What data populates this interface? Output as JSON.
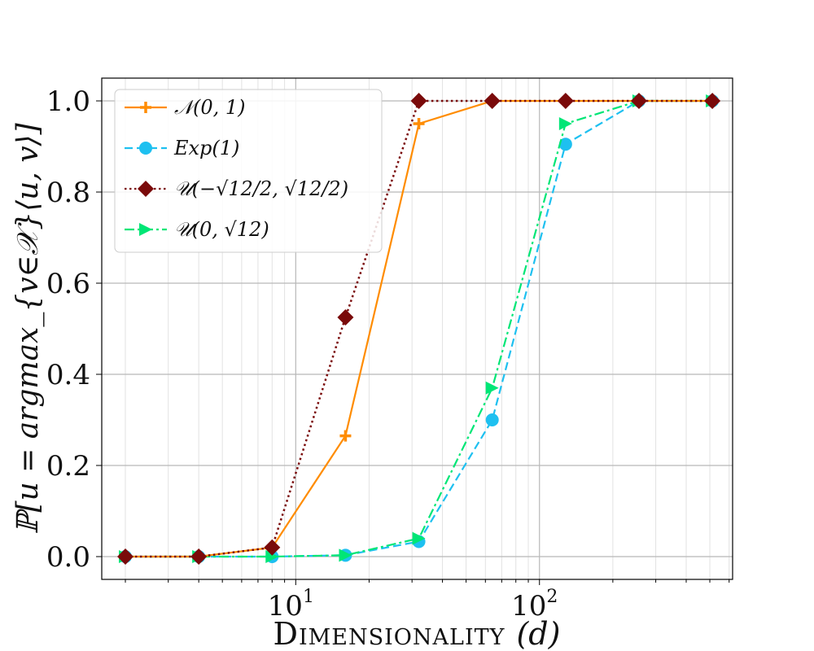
{
  "chart_data": {
    "type": "line",
    "xscale": "log",
    "xlim": [
      1.6,
      620
    ],
    "ylim": [
      -0.05,
      1.05
    ],
    "xticks": [
      {
        "value": 10,
        "base": "10",
        "exp": "1"
      },
      {
        "value": 100,
        "base": "10",
        "exp": "2"
      }
    ],
    "yticks": [
      {
        "value": 0.0,
        "label": "0.0"
      },
      {
        "value": 0.2,
        "label": "0.2"
      },
      {
        "value": 0.4,
        "label": "0.4"
      },
      {
        "value": 0.6,
        "label": "0.6"
      },
      {
        "value": 0.8,
        "label": "0.8"
      },
      {
        "value": 1.0,
        "label": "1.0"
      }
    ],
    "xlabel": "Dimensionality (d)",
    "xlabel_word": "Dimensionality",
    "xlabel_var": "(d)",
    "ylabel": "ℙ[u = argmax_{v∈𝒳}⟨u, v⟩]",
    "grid": true,
    "legend_position": "top-left",
    "x": [
      2,
      4,
      8,
      16,
      32,
      64,
      128,
      256,
      512
    ],
    "series": [
      {
        "name": "𝒩(0, 1)",
        "color": "#ff8c00",
        "dash": "solid",
        "marker": "plus",
        "values": [
          0.0,
          0.0,
          0.02,
          0.265,
          0.95,
          1.0,
          1.0,
          1.0,
          1.0
        ]
      },
      {
        "name": "Exp(1)",
        "color": "#1ec0f0",
        "dash": "dashed",
        "marker": "circle",
        "values": [
          0.0,
          0.0,
          0.0,
          0.003,
          0.033,
          0.3,
          0.905,
          1.0,
          1.0
        ]
      },
      {
        "name": "𝒰(−√12/2, √12/2)",
        "color": "#7a0a0a",
        "dash": "dotted",
        "marker": "diamond",
        "values": [
          0.0,
          0.0,
          0.02,
          0.525,
          1.0,
          1.0,
          1.0,
          1.0,
          1.0
        ]
      },
      {
        "name": "𝒰(0, √12)",
        "color": "#00e676",
        "dash": "dashdot",
        "marker": "triangle-right",
        "values": [
          0.0,
          0.0,
          0.0,
          0.003,
          0.04,
          0.37,
          0.95,
          1.0,
          1.0
        ]
      }
    ]
  }
}
